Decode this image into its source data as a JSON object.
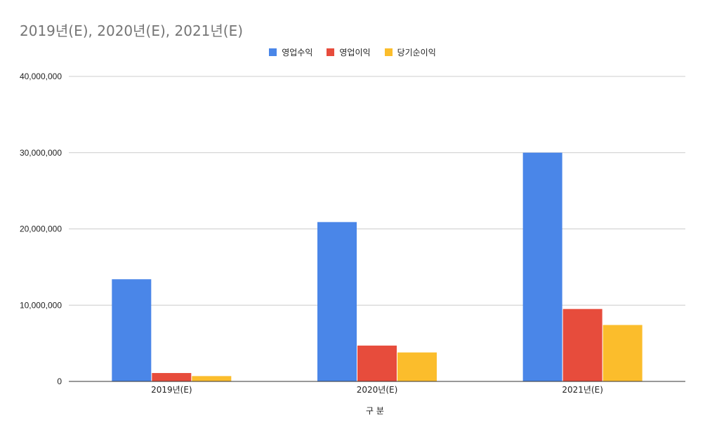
{
  "chart_data": {
    "type": "bar",
    "title": "2019년(E), 2020년(E), 2021년(E)",
    "xlabel": "구 분",
    "ylabel": "",
    "categories": [
      "2019년(E)",
      "2020년(E)",
      "2021년(E)"
    ],
    "series": [
      {
        "name": "영업수익",
        "color": "#4a86e8",
        "values": [
          13400000,
          20900000,
          30000000
        ]
      },
      {
        "name": "영업이익",
        "color": "#e74c3c",
        "values": [
          1100000,
          4700000,
          9500000
        ]
      },
      {
        "name": "당기순이익",
        "color": "#fbbd2c",
        "values": [
          700000,
          3800000,
          7400000
        ]
      }
    ],
    "ylim": [
      0,
      40000000
    ],
    "yticks": [
      0,
      10000000,
      20000000,
      30000000,
      40000000
    ],
    "ytick_labels": [
      "0",
      "10,000,000",
      "20,000,000",
      "30,000,000",
      "40,000,000"
    ],
    "grid": true,
    "legend_position": "top-center"
  }
}
